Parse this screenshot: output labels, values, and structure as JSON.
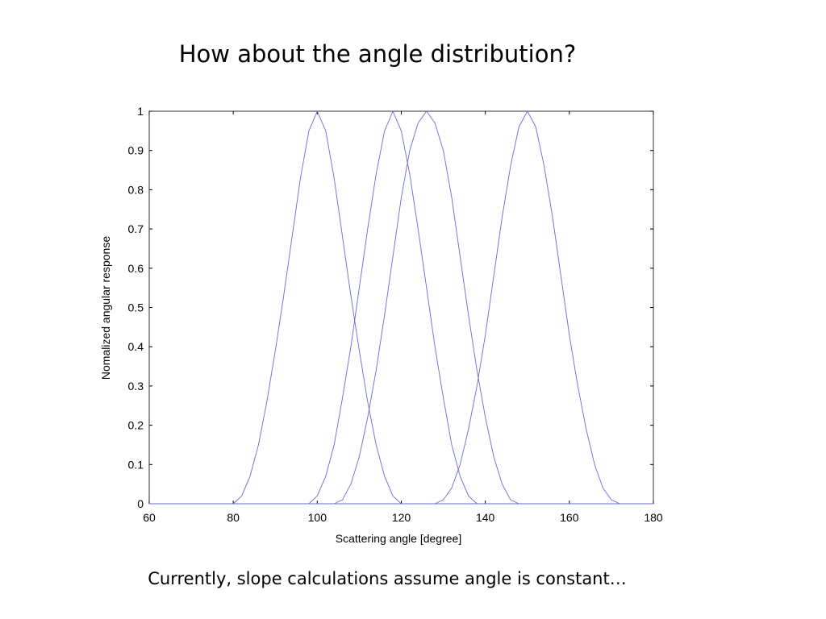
{
  "slide": {
    "title": "How about the angle distribution?",
    "caption": "Currently, slope calculations assume angle is constant…"
  },
  "chart_data": {
    "type": "line",
    "title": "",
    "xlabel": "Scattering angle [degree]",
    "ylabel": "Nomalized angular response",
    "xlim": [
      60,
      180
    ],
    "ylim": [
      0,
      1
    ],
    "xticks": [
      60,
      80,
      100,
      120,
      140,
      160,
      180
    ],
    "xtick_labels": [
      "60",
      "80",
      "100",
      "120",
      "140",
      "160",
      "180"
    ],
    "yticks": [
      0,
      0.1,
      0.2,
      0.3,
      0.4,
      0.5,
      0.6,
      0.7,
      0.8,
      0.9,
      1
    ],
    "ytick_labels": [
      "0",
      "0.1",
      "0.2",
      "0.3",
      "0.4",
      "0.5",
      "0.6",
      "0.7",
      "0.8",
      "0.9",
      "1"
    ],
    "grid": false,
    "line_color": "#6a6ad6",
    "series": [
      {
        "x": [
          60,
          80,
          82,
          84,
          86,
          88,
          90,
          92,
          94,
          96,
          98,
          100,
          102,
          104,
          106,
          108,
          110,
          112,
          114,
          116,
          118,
          120,
          122,
          180
        ],
        "y": [
          0,
          0,
          0.02,
          0.07,
          0.15,
          0.26,
          0.39,
          0.53,
          0.68,
          0.83,
          0.95,
          1.0,
          0.95,
          0.83,
          0.68,
          0.53,
          0.39,
          0.26,
          0.15,
          0.07,
          0.02,
          0,
          0,
          0
        ]
      },
      {
        "x": [
          60,
          98,
          100,
          102,
          104,
          106,
          108,
          110,
          112,
          114,
          116,
          118,
          120,
          122,
          124,
          126,
          128,
          130,
          132,
          134,
          136,
          138,
          180
        ],
        "y": [
          0,
          0,
          0.02,
          0.07,
          0.15,
          0.27,
          0.4,
          0.55,
          0.7,
          0.84,
          0.95,
          1.0,
          0.95,
          0.84,
          0.7,
          0.55,
          0.4,
          0.27,
          0.15,
          0.07,
          0.02,
          0,
          0
        ]
      },
      {
        "x": [
          60,
          104,
          106,
          108,
          110,
          112,
          114,
          116,
          118,
          120,
          122,
          124,
          126,
          128,
          130,
          132,
          134,
          136,
          138,
          140,
          142,
          144,
          146,
          148,
          180
        ],
        "y": [
          0,
          0,
          0.01,
          0.05,
          0.12,
          0.22,
          0.34,
          0.48,
          0.63,
          0.78,
          0.9,
          0.97,
          1.0,
          0.97,
          0.9,
          0.78,
          0.63,
          0.48,
          0.34,
          0.22,
          0.12,
          0.05,
          0.01,
          0,
          0
        ]
      },
      {
        "x": [
          60,
          128,
          130,
          132,
          134,
          136,
          138,
          140,
          142,
          144,
          146,
          148,
          150,
          152,
          154,
          156,
          158,
          160,
          162,
          164,
          166,
          168,
          170,
          172,
          180
        ],
        "y": [
          0,
          0,
          0.01,
          0.04,
          0.1,
          0.19,
          0.3,
          0.43,
          0.58,
          0.73,
          0.86,
          0.96,
          1.0,
          0.96,
          0.86,
          0.73,
          0.58,
          0.43,
          0.3,
          0.19,
          0.1,
          0.04,
          0.01,
          0,
          0
        ]
      }
    ]
  }
}
